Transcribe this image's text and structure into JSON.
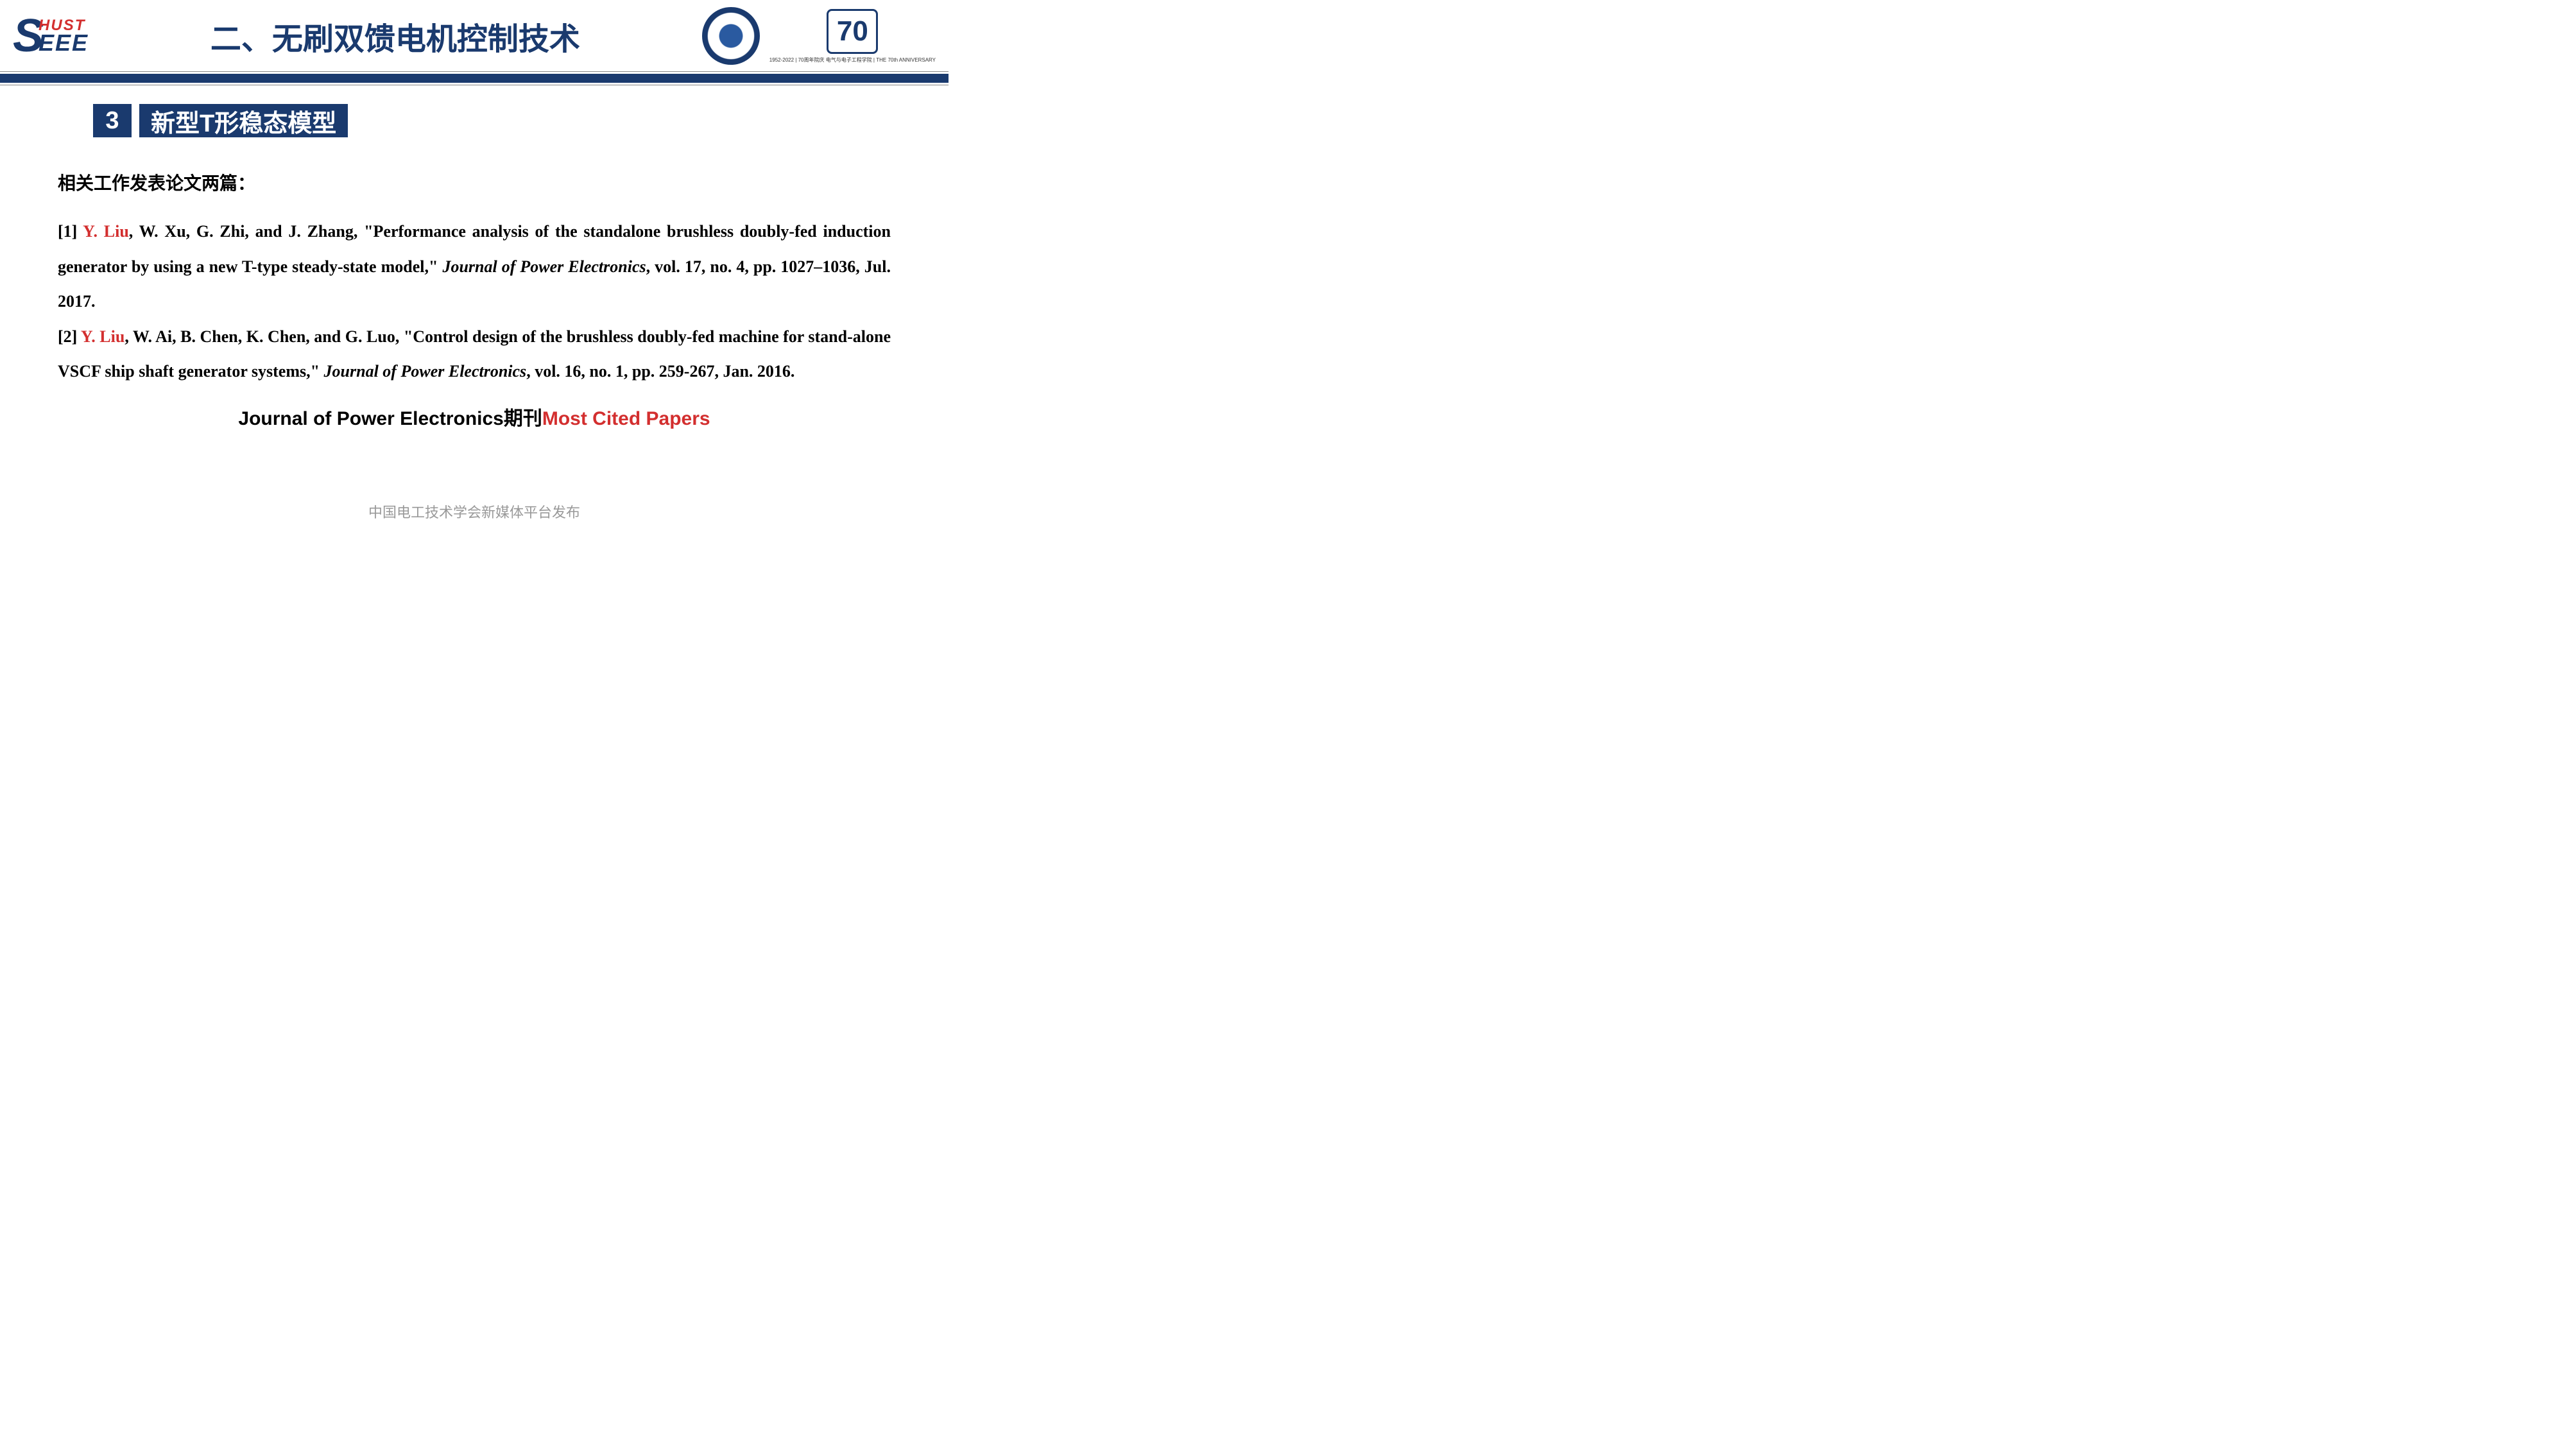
{
  "header": {
    "logo_left": {
      "s": "S",
      "top": "HUST",
      "bottom": "EEE"
    },
    "main_title": "二、无刷双馈电机控制技术",
    "badge_70": "70",
    "badge_70_sub": "1952-2022 | 70周年院庆\n电气与电子工程学院 | THE 70th ANNIVERSARY"
  },
  "section": {
    "number": "3",
    "title": "新型T形稳态模型"
  },
  "content": {
    "intro": "相关工作发表论文两篇：",
    "ref1": {
      "prefix": "[1] ",
      "author": "Y. Liu",
      "rest1": ", W. Xu, G. Zhi, and J. Zhang, \"Performance analysis of the standalone brushless doubly-fed induction generator by using a new T-type steady-state model,\" ",
      "journal": "Journal of Power Electronics",
      "rest2": ", vol. 17, no. 4, pp. 1027–1036, Jul. 2017."
    },
    "ref2": {
      "prefix": "[2] ",
      "author": "Y. Liu",
      "rest1": ", W. Ai, B. Chen, K. Chen, and G. Luo, \"Control design of the brushless doubly-fed machine for stand-alone VSCF ship shaft generator systems,\" ",
      "journal": "Journal of Power Electronics",
      "rest2": ", vol. 16, no. 1, pp. 259-267, Jan. 2016."
    },
    "highlight": {
      "part1": "Journal of Power Electronics期刊",
      "part2": "Most Cited Papers"
    }
  },
  "footer": "中国电工技术学会新媒体平台发布",
  "colors": {
    "primary": "#1a3a6e",
    "accent": "#d32f2f",
    "text": "#000000",
    "footer": "#999999",
    "background": "#ffffff"
  }
}
